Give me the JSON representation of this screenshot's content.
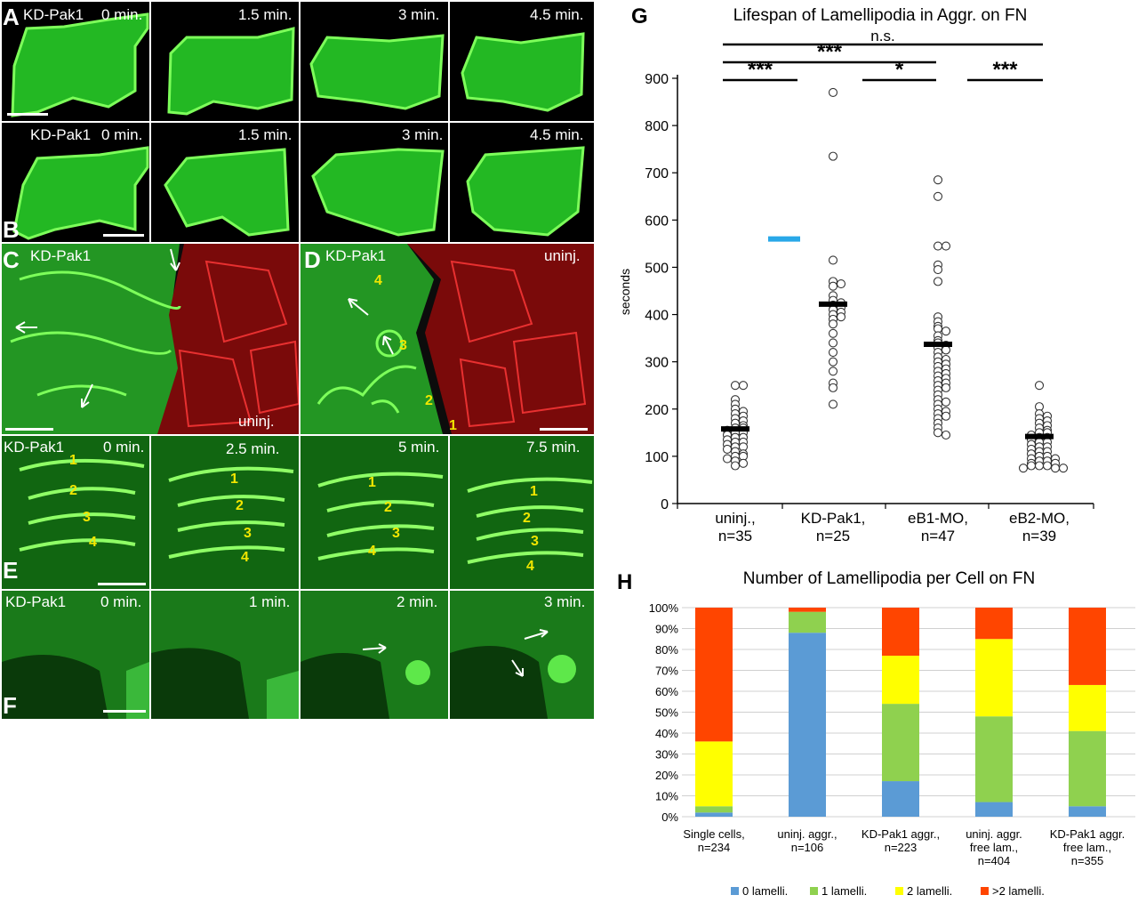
{
  "row_a": {
    "letter": "A",
    "times": [
      "KD-Pak1",
      "0 min.",
      "1.5 min.",
      "3 min.",
      "4.5 min."
    ]
  },
  "row_b": {
    "letter": "B",
    "times": [
      "KD-Pak1",
      "0 min.",
      "1.5 min.",
      "3 min.",
      "4.5 min."
    ]
  },
  "panel_c": {
    "letter": "C",
    "label": "KD-Pak1",
    "label2": "uninj."
  },
  "panel_d": {
    "letter": "D",
    "label": "KD-Pak1",
    "label2": "uninj.",
    "numbers": [
      "4",
      "3",
      "2",
      "1"
    ]
  },
  "row_e": {
    "letter": "E",
    "times": [
      "KD-Pak1",
      "0 min.",
      "2.5 min.",
      "5 min.",
      "7.5 min."
    ],
    "numbers": [
      "1",
      "2",
      "3",
      "4"
    ]
  },
  "row_f": {
    "letter": "F",
    "times": [
      "KD-Pak1",
      "0 min.",
      "1 min.",
      "2 min.",
      "3 min."
    ]
  },
  "chart_data": [
    {
      "type": "scatter",
      "panel_letter": "G",
      "title": "Lifespan of Lamellipodia in Aggr. on FN",
      "ylabel": "seconds",
      "ylim": [
        0,
        900
      ],
      "yticks": [
        0,
        100,
        200,
        300,
        400,
        500,
        600,
        700,
        800,
        900
      ],
      "categories": [
        "uninj.,\nn=35",
        "KD-Pak1,\nn=25",
        "eB1-MO,\nn=47",
        "eB2-MO,\nn=39"
      ],
      "category_lines": [
        [
          "uninj.,",
          "n=35"
        ],
        [
          "KD-Pak1,",
          "n=25"
        ],
        [
          "eB1-MO,",
          "n=47"
        ],
        [
          "eB2-MO,",
          "n=39"
        ]
      ],
      "means": [
        158,
        422,
        337,
        142
      ],
      "reference_value": 560,
      "reference_color": "#29a8e8",
      "points": [
        [
          250,
          250,
          220,
          210,
          200,
          195,
          190,
          185,
          180,
          175,
          170,
          165,
          160,
          160,
          155,
          150,
          150,
          145,
          140,
          140,
          135,
          130,
          130,
          125,
          120,
          120,
          115,
          110,
          105,
          100,
          100,
          95,
          90,
          85,
          80
        ],
        [
          870,
          735,
          515,
          470,
          465,
          460,
          440,
          430,
          425,
          420,
          415,
          410,
          405,
          400,
          395,
          390,
          380,
          360,
          340,
          320,
          300,
          280,
          255,
          245,
          210
        ],
        [
          685,
          650,
          545,
          545,
          505,
          495,
          470,
          395,
          385,
          375,
          370,
          365,
          355,
          345,
          340,
          335,
          330,
          325,
          320,
          310,
          305,
          300,
          295,
          290,
          285,
          280,
          275,
          270,
          265,
          260,
          255,
          250,
          245,
          240,
          230,
          220,
          215,
          210,
          200,
          195,
          190,
          185,
          180,
          170,
          160,
          150,
          145
        ],
        [
          250,
          205,
          190,
          185,
          180,
          175,
          170,
          165,
          160,
          155,
          150,
          150,
          145,
          140,
          140,
          135,
          130,
          130,
          125,
          120,
          120,
          115,
          110,
          110,
          105,
          100,
          100,
          95,
          95,
          90,
          90,
          85,
          85,
          80,
          80,
          80,
          75,
          75,
          75
        ]
      ],
      "significance": [
        {
          "from": 0,
          "to": 3,
          "label": "n.s."
        },
        {
          "from": 0,
          "to": 2,
          "label": "***"
        },
        {
          "from": 0,
          "to": 1,
          "label": "***"
        },
        {
          "from": 1,
          "to": 2,
          "label": "*"
        },
        {
          "from": 2,
          "to": 3,
          "label": "***"
        }
      ]
    },
    {
      "type": "bar",
      "panel_letter": "H",
      "stacked": true,
      "percent": true,
      "title": "Number of Lamellipodia per Cell on FN",
      "ylim": [
        0,
        100
      ],
      "ytick_labels": [
        "0%",
        "10%",
        "20%",
        "30%",
        "40%",
        "50%",
        "60%",
        "70%",
        "80%",
        "90%",
        "100%"
      ],
      "categories": [
        "Single cells,\nn=234",
        "uninj. aggr.,\nn=106",
        "KD-Pak1 aggr.,\nn=223",
        "uninj. aggr.\nfree lam.,\nn=404",
        "KD-Pak1 aggr.\nfree lam.,\nn=355"
      ],
      "category_lines": [
        [
          "Single cells,",
          "n=234"
        ],
        [
          "uninj. aggr.,",
          "n=106"
        ],
        [
          "KD-Pak1 aggr.,",
          "n=223"
        ],
        [
          "uninj. aggr.",
          "free lam.,",
          "n=404"
        ],
        [
          "KD-Pak1 aggr.",
          "free lam.,",
          "n=355"
        ]
      ],
      "series": [
        {
          "name": "0 lamelli.",
          "color": "#5b9bd5",
          "values": [
            2,
            88,
            17,
            7,
            5
          ]
        },
        {
          "name": "1 lamelli.",
          "color": "#8fd14f",
          "values": [
            3,
            10,
            37,
            41,
            36
          ]
        },
        {
          "name": "2 lamelli.",
          "color": "#ffff00",
          "values": [
            31,
            0,
            23,
            37,
            22
          ]
        },
        {
          "name": ">2 lamelli.",
          "color": "#ff4500",
          "values": [
            64,
            2,
            23,
            15,
            37
          ]
        }
      ],
      "legend_position": "bottom"
    }
  ]
}
